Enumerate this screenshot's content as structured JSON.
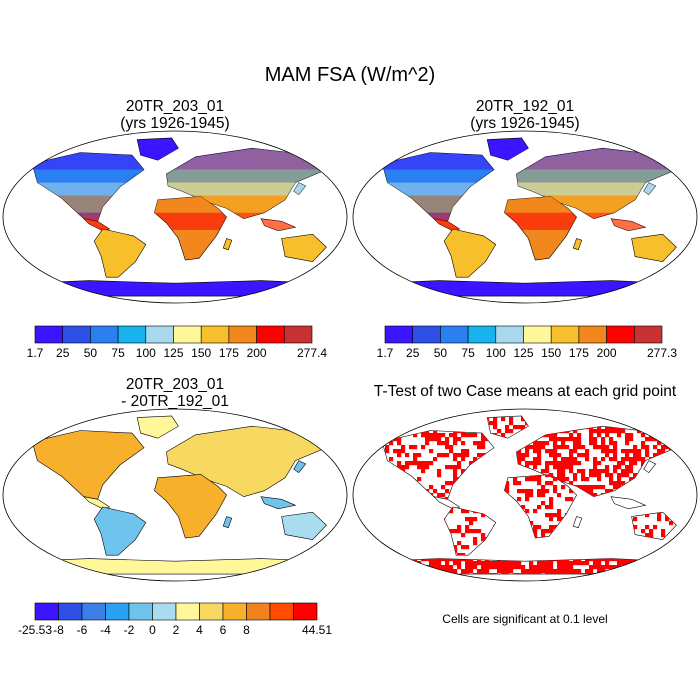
{
  "title": "MAM FSA (W/m^2)",
  "colors": {
    "abs_scale": [
      "#3c14ff",
      "#2f50e6",
      "#2a80f0",
      "#18b2ee",
      "#a8d8ee",
      "#fff79a",
      "#f7bf2c",
      "#f2871d",
      "#ff0000",
      "#c83232"
    ],
    "diff_scale": [
      "#3c14ff",
      "#2f50e6",
      "#3a7ee6",
      "#2aa0f0",
      "#6fc4ee",
      "#a8dcee",
      "#fff79a",
      "#f7d860",
      "#f7b02c",
      "#f2821d",
      "#ff4a00",
      "#ff0000",
      "#c83232"
    ],
    "significant": "#ff0000",
    "ocean": "#ffffff",
    "outline": "#000000"
  },
  "panels": [
    {
      "id": "p1",
      "title_line1": "20TR_203_01",
      "title_line2": "(yrs 1926-1945)",
      "field": "absolute"
    },
    {
      "id": "p2",
      "title_line1": "20TR_192_01",
      "title_line2": "(yrs 1926-1945)",
      "field": "absolute"
    },
    {
      "id": "p3",
      "title_line1": "20TR_203_01",
      "title_line2": "- 20TR_192_01",
      "field": "difference"
    },
    {
      "id": "p4",
      "title_line1": "T-Test of two Case means at each grid point",
      "title_line2": "",
      "field": "significance"
    }
  ],
  "colorbars": [
    {
      "id": "cb1",
      "labels": [
        "1.7",
        "25",
        "50",
        "75",
        "100",
        "125",
        "150",
        "175",
        "200",
        "277.4"
      ]
    },
    {
      "id": "cb2",
      "labels": [
        "1.7",
        "25",
        "50",
        "75",
        "100",
        "125",
        "150",
        "175",
        "200",
        "277.3"
      ]
    },
    {
      "id": "cb3",
      "labels": [
        "-25.53",
        "-8",
        "-6",
        "-4",
        "-2",
        "0",
        "2",
        "4",
        "6",
        "8",
        "44.51"
      ]
    }
  ],
  "note": "Cells are significant at 0.1 level",
  "chart_data": [
    {
      "type": "heatmap",
      "title": "20TR_203_01 (yrs 1926-1945)",
      "projection": "Robinson",
      "colorbar_levels": [
        25,
        50,
        75,
        100,
        125,
        150,
        175,
        200
      ],
      "min": 1.7,
      "max": 277.4
    },
    {
      "type": "heatmap",
      "title": "20TR_192_01 (yrs 1926-1945)",
      "projection": "Robinson",
      "colorbar_levels": [
        25,
        50,
        75,
        100,
        125,
        150,
        175,
        200
      ],
      "min": 1.7,
      "max": 277.3
    },
    {
      "type": "heatmap",
      "title": "20TR_203_01 - 20TR_192_01",
      "projection": "Robinson",
      "colorbar_levels": [
        -8,
        -6,
        -4,
        -2,
        0,
        2,
        4,
        6,
        8
      ],
      "min": -25.53,
      "max": 44.51
    },
    {
      "type": "heatmap",
      "title": "T-Test of two Case means at each grid point",
      "projection": "Robinson",
      "significance_level": 0.1
    }
  ]
}
